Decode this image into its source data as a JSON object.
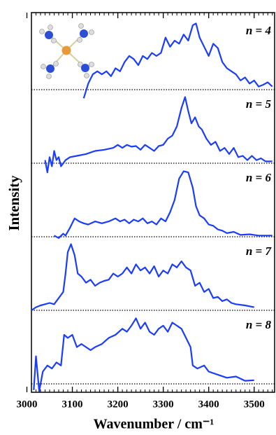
{
  "chart_data": [
    {
      "type": "line",
      "annotation": "n = 4",
      "ylabel": "Intensity",
      "color": "#1a3cff",
      "xlim": [
        3010,
        3545
      ],
      "ylim": [
        0,
        1.2
      ],
      "x": [
        3125,
        3135,
        3145,
        3155,
        3165,
        3175,
        3185,
        3195,
        3205,
        3215,
        3225,
        3235,
        3245,
        3255,
        3265,
        3275,
        3285,
        3295,
        3305,
        3315,
        3325,
        3335,
        3345,
        3355,
        3365,
        3372,
        3380,
        3390,
        3400,
        3410,
        3420,
        3430,
        3440,
        3450,
        3460,
        3470,
        3480,
        3490,
        3500,
        3510,
        3520,
        3530,
        3540
      ],
      "values": [
        -0.14,
        0.1,
        0.25,
        0.3,
        0.25,
        0.3,
        0.22,
        0.35,
        0.3,
        0.45,
        0.55,
        0.5,
        0.4,
        0.55,
        0.5,
        0.6,
        0.55,
        0.6,
        0.85,
        0.7,
        0.8,
        0.75,
        0.9,
        0.8,
        1.05,
        1.08,
        0.85,
        0.7,
        0.55,
        0.75,
        0.68,
        0.45,
        0.35,
        0.3,
        0.25,
        0.15,
        0.2,
        0.1,
        0.15,
        0.05,
        0.08,
        0.12,
        0.05
      ]
    },
    {
      "type": "line",
      "annotation": "n = 5",
      "color": "#1a3cff",
      "xlim": [
        3010,
        3545
      ],
      "ylim": [
        0,
        1.2
      ],
      "x": [
        3040,
        3045,
        3050,
        3055,
        3060,
        3065,
        3070,
        3075,
        3085,
        3095,
        3110,
        3130,
        3150,
        3170,
        3190,
        3200,
        3210,
        3220,
        3230,
        3240,
        3250,
        3260,
        3270,
        3280,
        3290,
        3300,
        3310,
        3320,
        3330,
        3340,
        3348,
        3355,
        3362,
        3370,
        3378,
        3385,
        3395,
        3405,
        3415,
        3425,
        3435,
        3445,
        3455,
        3465,
        3475,
        3485,
        3495,
        3505,
        3515,
        3525,
        3540
      ],
      "values": [
        0.05,
        -0.15,
        0.1,
        -0.05,
        0.2,
        0.05,
        0.1,
        -0.05,
        0.05,
        0.1,
        0.12,
        0.15,
        0.2,
        0.22,
        0.25,
        0.3,
        0.25,
        0.3,
        0.27,
        0.28,
        0.22,
        0.3,
        0.25,
        0.2,
        0.28,
        0.3,
        0.4,
        0.45,
        0.6,
        0.9,
        1.08,
        0.85,
        0.65,
        0.75,
        0.6,
        0.55,
        0.4,
        0.3,
        0.35,
        0.2,
        0.25,
        0.15,
        0.25,
        0.1,
        0.12,
        0.05,
        0.12,
        0.05,
        0.08,
        0.03,
        0.03
      ]
    },
    {
      "type": "line",
      "annotation": "n = 6",
      "color": "#1a3cff",
      "xlim": [
        3010,
        3545
      ],
      "ylim": [
        0,
        1.2
      ],
      "x": [
        3060,
        3070,
        3080,
        3085,
        3095,
        3105,
        3115,
        3125,
        3135,
        3150,
        3165,
        3180,
        3195,
        3205,
        3215,
        3225,
        3235,
        3245,
        3255,
        3265,
        3275,
        3285,
        3295,
        3305,
        3315,
        3325,
        3335,
        3345,
        3355,
        3365,
        3372,
        3380,
        3390,
        3400,
        3410,
        3420,
        3430,
        3440,
        3455,
        3470,
        3490,
        3510,
        3540
      ],
      "values": [
        0.02,
        -0.02,
        0.05,
        0.02,
        0.15,
        0.3,
        0.25,
        0.22,
        0.2,
        0.25,
        0.22,
        0.25,
        0.3,
        0.25,
        0.28,
        0.22,
        0.28,
        0.25,
        0.3,
        0.22,
        0.25,
        0.2,
        0.3,
        0.25,
        0.4,
        0.6,
        0.95,
        1.07,
        1.05,
        0.8,
        0.5,
        0.35,
        0.3,
        0.2,
        0.18,
        0.12,
        0.1,
        0.06,
        0.08,
        0.03,
        0.04,
        0.02,
        0.02
      ]
    },
    {
      "type": "line",
      "annotation": "n = 7",
      "color": "#1a3cff",
      "xlim": [
        3010,
        3545
      ],
      "ylim": [
        0,
        1.2
      ],
      "x": [
        3010,
        3020,
        3030,
        3040,
        3050,
        3060,
        3070,
        3080,
        3085,
        3090,
        3097,
        3105,
        3112,
        3120,
        3130,
        3140,
        3150,
        3160,
        3170,
        3180,
        3190,
        3200,
        3210,
        3220,
        3230,
        3240,
        3250,
        3260,
        3270,
        3280,
        3290,
        3300,
        3310,
        3320,
        3330,
        3340,
        3350,
        3360,
        3370,
        3380,
        3390,
        3400,
        3410,
        3420,
        3430,
        3440,
        3450,
        3460,
        3480,
        3500
      ],
      "values": [
        0,
        0.05,
        0.08,
        0.1,
        0.12,
        0.1,
        0.2,
        0.3,
        0.6,
        0.95,
        1.08,
        0.9,
        0.6,
        0.55,
        0.45,
        0.5,
        0.4,
        0.45,
        0.48,
        0.5,
        0.6,
        0.55,
        0.6,
        0.7,
        0.6,
        0.75,
        0.65,
        0.7,
        0.6,
        0.72,
        0.55,
        0.65,
        0.6,
        0.75,
        0.7,
        0.8,
        0.7,
        0.65,
        0.4,
        0.45,
        0.3,
        0.35,
        0.2,
        0.22,
        0.15,
        0.18,
        0.12,
        0.1,
        0.08,
        0.05
      ]
    },
    {
      "type": "line",
      "annotation": "n = 8",
      "color": "#1a3cff",
      "xlim": [
        3010,
        3545
      ],
      "ylim": [
        0,
        1.2
      ],
      "xlabel": "Wavenumber / cm⁻¹",
      "xticks": [
        3000,
        3100,
        3200,
        3300,
        3400,
        3500
      ],
      "x": [
        3015,
        3020,
        3027,
        3035,
        3045,
        3055,
        3065,
        3075,
        3082,
        3090,
        3100,
        3110,
        3120,
        3130,
        3140,
        3150,
        3165,
        3180,
        3195,
        3210,
        3220,
        3230,
        3240,
        3250,
        3260,
        3270,
        3280,
        3290,
        3300,
        3310,
        3320,
        3330,
        3340,
        3350,
        3360,
        3365,
        3375,
        3390,
        3400,
        3420,
        3440,
        3460,
        3480,
        3500
      ],
      "values": [
        -0.1,
        0.45,
        -0.12,
        0.2,
        0.3,
        0.25,
        0.35,
        0.3,
        0.8,
        0.75,
        0.8,
        0.6,
        0.65,
        0.6,
        0.55,
        0.6,
        0.65,
        0.75,
        0.8,
        0.9,
        0.85,
        0.95,
        1.07,
        0.9,
        1.0,
        0.85,
        0.8,
        0.9,
        0.95,
        0.85,
        1.0,
        0.95,
        0.9,
        0.75,
        0.6,
        0.3,
        0.25,
        0.3,
        0.2,
        0.15,
        0.1,
        0.12,
        0.05,
        0.06
      ]
    }
  ]
}
